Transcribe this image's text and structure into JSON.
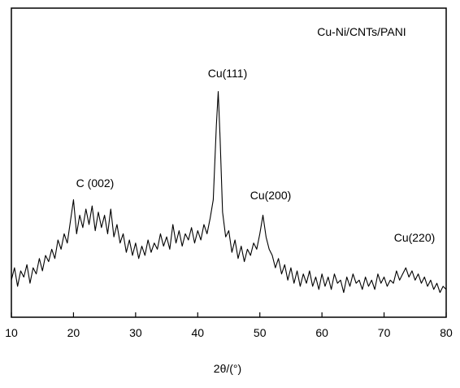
{
  "chart_data": {
    "type": "line",
    "x_label": "2θ/(°)",
    "x": [
      10,
      10.5,
      11,
      11.5,
      12,
      12.5,
      13,
      13.5,
      14,
      14.5,
      15,
      15.5,
      16,
      16.5,
      17,
      17.5,
      18,
      18.5,
      19,
      19.5,
      20,
      20.5,
      21,
      21.5,
      22,
      22.5,
      23,
      23.5,
      24,
      24.5,
      25,
      25.5,
      26,
      26.5,
      27,
      27.5,
      28,
      28.5,
      29,
      29.5,
      30,
      30.5,
      31,
      31.5,
      32,
      32.5,
      33,
      33.5,
      34,
      34.5,
      35,
      35.5,
      36,
      36.5,
      37,
      37.5,
      38,
      38.5,
      39,
      39.5,
      40,
      40.5,
      41,
      41.5,
      42,
      42.5,
      43,
      43.3,
      43.6,
      44,
      44.5,
      45,
      45.5,
      46,
      46.5,
      47,
      47.5,
      48,
      48.5,
      49,
      49.5,
      50,
      50.5,
      51,
      51.5,
      52,
      52.5,
      53,
      53.5,
      54,
      54.5,
      55,
      55.5,
      56,
      56.5,
      57,
      57.5,
      58,
      58.5,
      59,
      59.5,
      60,
      60.5,
      61,
      61.5,
      62,
      62.5,
      63,
      63.5,
      64,
      64.5,
      65,
      65.5,
      66,
      66.5,
      67,
      67.5,
      68,
      68.5,
      69,
      69.5,
      70,
      70.5,
      71,
      71.5,
      72,
      72.5,
      73,
      73.5,
      74,
      74.5,
      75,
      75.5,
      76,
      76.5,
      77,
      77.5,
      78,
      78.5,
      79,
      79.5,
      80
    ],
    "series": [
      {
        "name": "Cu-Ni/CNTs/PANI",
        "color": "#000000",
        "values": [
          12,
          16,
          10,
          15,
          13,
          17,
          11,
          16,
          14,
          19,
          15,
          20,
          18,
          22,
          19,
          25,
          22,
          27,
          24,
          31,
          38,
          27,
          33,
          29,
          35,
          30,
          36,
          28,
          34,
          29,
          33,
          27,
          35,
          26,
          30,
          24,
          27,
          21,
          25,
          20,
          24,
          19,
          23,
          20,
          25,
          21,
          24,
          22,
          27,
          23,
          26,
          22,
          30,
          24,
          28,
          23,
          27,
          25,
          29,
          24,
          28,
          25,
          30,
          27,
          32,
          38,
          62,
          73,
          58,
          34,
          26,
          28,
          21,
          25,
          19,
          23,
          18,
          22,
          20,
          24,
          22,
          27,
          33,
          26,
          22,
          20,
          16,
          19,
          14,
          17,
          12,
          16,
          11,
          15,
          10,
          14,
          11,
          15,
          10,
          13,
          9,
          14,
          10,
          13,
          9,
          14,
          11,
          12,
          8,
          13,
          10,
          14,
          11,
          12,
          9,
          13,
          10,
          12,
          9,
          14,
          11,
          13,
          10,
          12,
          11,
          15,
          12,
          14,
          16,
          13,
          15,
          12,
          14,
          11,
          13,
          10,
          12,
          9,
          11,
          8,
          10,
          9
        ]
      }
    ],
    "annotations": [
      "C (002)",
      "Cu(111)",
      "Cu(200)",
      "Cu(220)"
    ],
    "xlim": [
      10,
      80
    ],
    "xticks": [
      10,
      20,
      30,
      40,
      50,
      60,
      70,
      80
    ],
    "ylim": [
      0,
      100
    ]
  }
}
